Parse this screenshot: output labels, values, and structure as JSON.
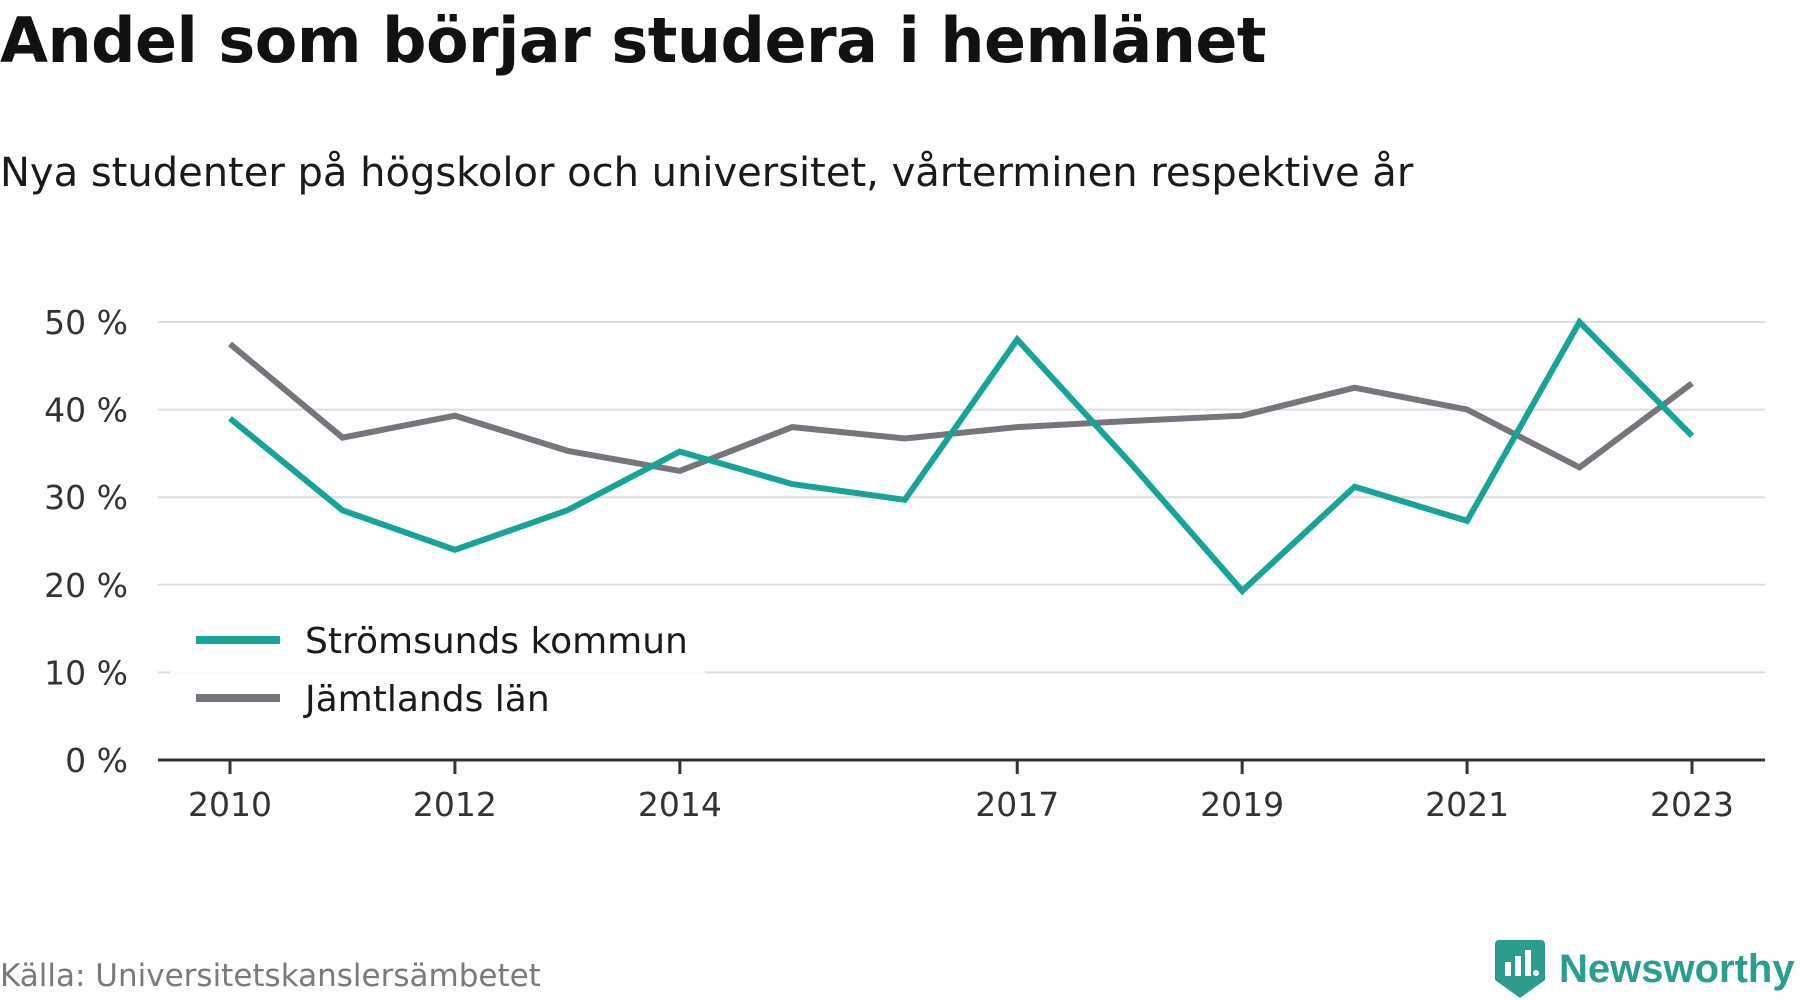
{
  "header": {
    "title": "Andel som börjar studera i hemlänet",
    "subtitle": "Nya studenter på högskolor och universitet, vårterminen respektive år"
  },
  "footer": {
    "source": "Källa: Universitetskanslersämbetet",
    "brand": "Newsworthy"
  },
  "colors": {
    "series_1": "#17a398",
    "series_2": "#77757b",
    "grid": "#dddddd",
    "brand": "#2a9d8f"
  },
  "chart_data": {
    "type": "line",
    "x": [
      2010,
      2011,
      2012,
      2013,
      2014,
      2015,
      2016,
      2017,
      2018,
      2019,
      2020,
      2021,
      2022,
      2023
    ],
    "x_tick_labels": [
      "2010",
      "2012",
      "2014",
      "2017",
      "2019",
      "2021",
      "2023"
    ],
    "y_tick_labels": [
      "0 %",
      "10 %",
      "20 %",
      "30 %",
      "40 %",
      "50 %"
    ],
    "ylim": [
      0,
      50
    ],
    "grid": true,
    "legend_position": "bottom-left",
    "series": [
      {
        "name": "Strömsunds kommun",
        "values": [
          39,
          28.5,
          24,
          28.5,
          35.2,
          31.5,
          29.7,
          48,
          34,
          19.3,
          31.2,
          27.3,
          50,
          37
        ]
      },
      {
        "name": "Jämtlands län",
        "values": [
          47.5,
          36.8,
          39.3,
          35.3,
          33,
          38,
          36.7,
          38,
          38.7,
          39.3,
          42.5,
          40,
          33.4,
          43
        ]
      }
    ]
  }
}
